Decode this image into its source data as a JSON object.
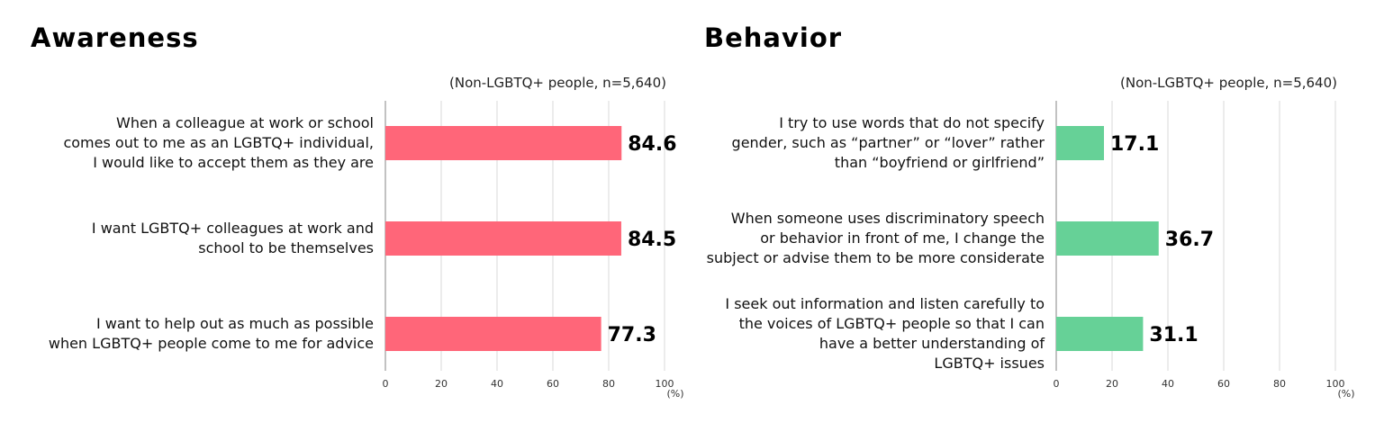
{
  "chart_data": [
    {
      "type": "bar",
      "orientation": "horizontal",
      "title": "Awareness",
      "subtitle": "(Non-LGBTQ+ people, n=5,640)",
      "unit": "(%)",
      "xlim": [
        0,
        100
      ],
      "ticks": [
        "0",
        "20",
        "40",
        "60",
        "80",
        "100"
      ],
      "color": "#ff6679",
      "categories": [
        [
          "When a colleague at work or school",
          "comes out to me as an LGBTQ+ individual,",
          "I would like to accept them as they are"
        ],
        [
          "I want LGBTQ+ colleagues at work and",
          "school to be themselves"
        ],
        [
          "I want to help out as much as possible",
          "when LGBTQ+ people come to me for advice"
        ]
      ],
      "values": [
        84.6,
        84.5,
        77.3
      ]
    },
    {
      "type": "bar",
      "orientation": "horizontal",
      "title": "Behavior",
      "subtitle": "(Non-LGBTQ+ people, n=5,640)",
      "unit": "(%)",
      "xlim": [
        0,
        100
      ],
      "ticks": [
        "0",
        "20",
        "40",
        "60",
        "80",
        "100"
      ],
      "color": "#66d197",
      "categories": [
        [
          "I try to use words that do not specify",
          "gender, such as “partner” or “lover” rather",
          "than “boyfriend or girlfriend”"
        ],
        [
          "When someone uses discriminatory speech",
          "or behavior in front of me, I change the",
          "subject or advise them to be more considerate"
        ],
        [
          "I seek out information and listen carefully to",
          "the voices of LGBTQ+ people so that I can",
          "have a better understanding of",
          "LGBTQ+ issues"
        ]
      ],
      "values": [
        17.1,
        36.7,
        31.1
      ]
    }
  ]
}
